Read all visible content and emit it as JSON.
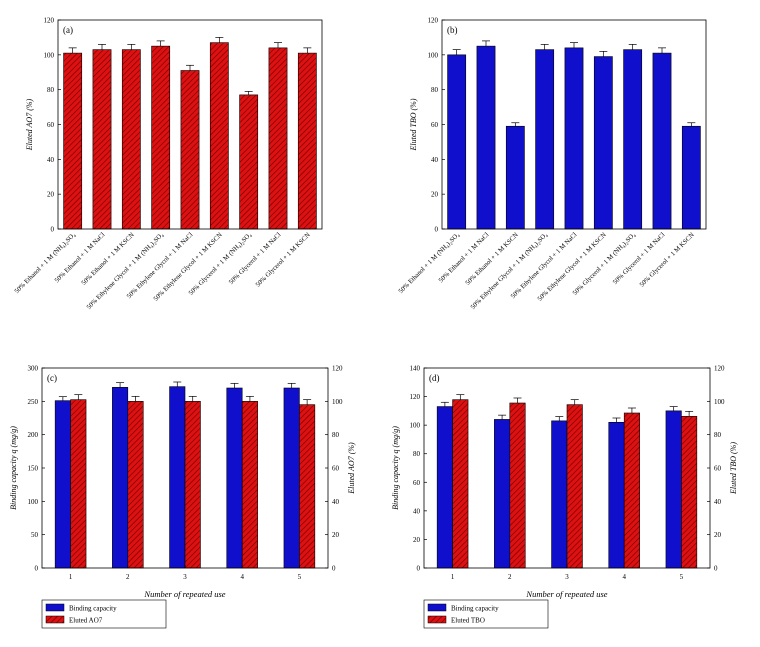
{
  "chart_data": [
    {
      "id": "a",
      "type": "bar",
      "panel_label": "(a)",
      "ylabel": "Eluted AO7 (%)",
      "xlabel": "",
      "ylim": [
        0,
        120
      ],
      "yticks": [
        0,
        20,
        40,
        60,
        80,
        100,
        120
      ],
      "grid": false,
      "color": "#dd1111",
      "hatched": true,
      "categories": [
        "50% Ethanol + 1 M (NH₄)₂SO₄",
        "50% Ethanol + 1 M NaCl",
        "50% Ethanol + 1 M KSCN",
        "50% Ethylene Glycol + 1 M (NH₄)₂SO₄",
        "50% Ethylene Glycol + 1 M NaCl",
        "50% Ethylene Glycol + 1 M KSCN",
        "50% Glycerol + 1 M (NH₄)₂SO₄",
        "50% Glycerol + 1 M NaCl",
        "50% Glycerol + 1 M KSCN"
      ],
      "values": [
        101,
        103,
        103,
        105,
        91,
        107,
        77,
        104,
        101
      ],
      "errors": [
        3,
        3,
        3,
        3,
        3,
        3,
        2,
        3,
        3
      ]
    },
    {
      "id": "b",
      "type": "bar",
      "panel_label": "(b)",
      "ylabel": "Eluted TBO (%)",
      "xlabel": "",
      "ylim": [
        0,
        120
      ],
      "yticks": [
        0,
        20,
        40,
        60,
        80,
        100,
        120
      ],
      "grid": false,
      "color": "#1010cc",
      "hatched": false,
      "categories": [
        "50% Ethanol + 1 M (NH₄)₂SO₄",
        "50% Ethanol + 1 M NaCl",
        "50% Ethanol + 1 M KSCN",
        "50% Ethylene Glycol + 1 M (NH₄)₂SO₄",
        "50% Ethylene Glycol + 1 M NaCl",
        "50% Ethylene Glycol + 1 M KSCN",
        "50% Glycerol + 1 M (NH₄)₂SO₄",
        "50% Glycerol + 1 M NaCl",
        "50% Glycerol + 1 M KSCN"
      ],
      "values": [
        100,
        105,
        59,
        103,
        104,
        99,
        103,
        101,
        59
      ],
      "errors": [
        3,
        3,
        2,
        3,
        3,
        3,
        3,
        3,
        2
      ]
    },
    {
      "id": "c",
      "type": "bar",
      "panel_label": "(c)",
      "xlabel": "Number of repeated use",
      "ylabel": "Binding capacity q (mg/g)",
      "ylabel_right": "Eluted AO7 (%)",
      "categories": [
        "1",
        "2",
        "3",
        "4",
        "5"
      ],
      "ylim": [
        0,
        300
      ],
      "yticks": [
        0,
        50,
        100,
        150,
        200,
        250,
        300
      ],
      "ylim_right": [
        0,
        120
      ],
      "yticks_right": [
        0,
        20,
        40,
        60,
        80,
        100,
        120
      ],
      "grid": false,
      "legend_position": "below-left",
      "series": [
        {
          "name": "Binding capacity",
          "axis": "left",
          "color": "#1010cc",
          "hatched": false,
          "values": [
            251,
            271,
            272,
            270,
            270
          ],
          "errors": [
            6,
            7,
            7,
            7,
            7
          ]
        },
        {
          "name": "Eluted AO7",
          "axis": "right",
          "color": "#dd1111",
          "hatched": true,
          "values": [
            101,
            100,
            100,
            100,
            98
          ],
          "errors": [
            3,
            3,
            3,
            3,
            3
          ]
        }
      ]
    },
    {
      "id": "d",
      "type": "bar",
      "panel_label": "(d)",
      "xlabel": "Number of repeated use",
      "ylabel": "Binding capacity q (mg/g)",
      "ylabel_right": "Eluted TBO (%)",
      "categories": [
        "1",
        "2",
        "3",
        "4",
        "5"
      ],
      "ylim": [
        0,
        140
      ],
      "yticks": [
        0,
        20,
        40,
        60,
        80,
        100,
        120,
        140
      ],
      "ylim_right": [
        0,
        120
      ],
      "yticks_right": [
        0,
        20,
        40,
        60,
        80,
        100,
        120
      ],
      "grid": false,
      "legend_position": "below-left",
      "series": [
        {
          "name": "Binding capacity",
          "axis": "left",
          "color": "#1010cc",
          "hatched": false,
          "values": [
            113,
            104,
            103,
            102,
            110
          ],
          "errors": [
            3,
            3,
            3,
            3,
            3
          ]
        },
        {
          "name": "Eluted TBO",
          "axis": "right",
          "color": "#dd1111",
          "hatched": true,
          "values": [
            101,
            99,
            98,
            93,
            91
          ],
          "errors": [
            3,
            3,
            3,
            3,
            3
          ]
        }
      ]
    }
  ]
}
